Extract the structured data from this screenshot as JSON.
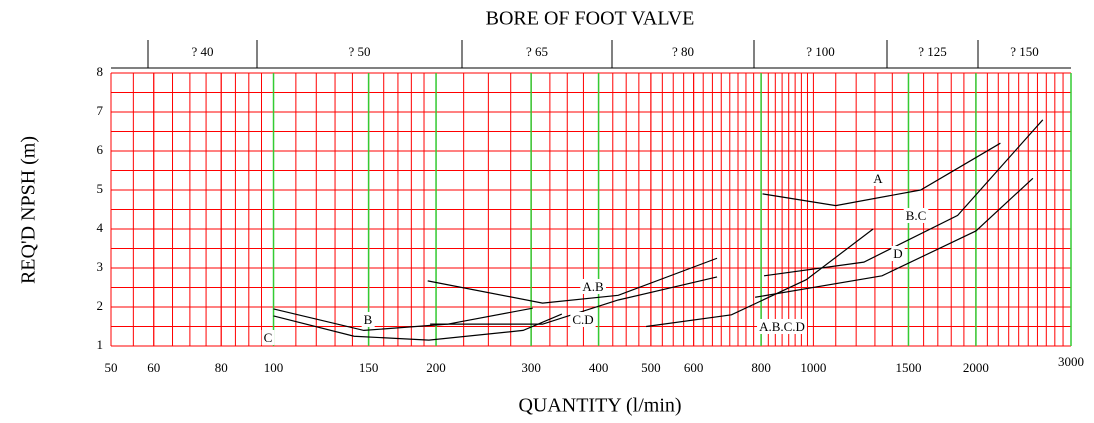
{
  "chart_data": {
    "type": "line",
    "title": "BORE OF FOOT VALVE",
    "top_labels": [
      "? 40",
      "? 50",
      "? 65",
      "? 80",
      "? 100",
      "? 125",
      "? 150"
    ],
    "xlabel": "QUANTITY (l/min)",
    "ylabel": "REQ'D NPSH (m)",
    "xscale": "log",
    "xlim": [
      50,
      3000
    ],
    "ylim": [
      1,
      8
    ],
    "xticks": [
      50,
      60,
      80,
      100,
      150,
      200,
      300,
      400,
      500,
      600,
      800,
      1000,
      1500,
      2000,
      3000
    ],
    "yticks": [
      1,
      2,
      3,
      4,
      5,
      6,
      7,
      8
    ],
    "major_grid_values": [
      100,
      150,
      200,
      300,
      400,
      800,
      1500,
      2000,
      3000
    ],
    "grid": true,
    "grid_color": "#ff0000",
    "major_grid_color": "#33cc33",
    "series": [
      {
        "name": "A",
        "color": "#000000",
        "x": [
          805,
          1100,
          1580,
          2220
        ],
        "values": [
          4.9,
          4.6,
          5.0,
          6.2
        ]
      },
      {
        "name": "B.C",
        "color": "#000000",
        "x": [
          810,
          1240,
          1850,
          2660
        ],
        "values": [
          2.8,
          3.15,
          4.35,
          6.8
        ]
      },
      {
        "name": "D",
        "color": "#000000",
        "x": [
          780,
          1340,
          2000,
          2550
        ],
        "values": [
          2.25,
          2.8,
          3.95,
          5.3
        ]
      },
      {
        "name": "A.B.C.D",
        "color": "#000000",
        "x": [
          490,
          705,
          970,
          1290
        ],
        "values": [
          1.5,
          1.8,
          2.7,
          4.0
        ]
      },
      {
        "name": "A.B",
        "color": "#000000",
        "x": [
          193,
          315,
          435,
          663
        ],
        "values": [
          2.67,
          2.1,
          2.3,
          3.25
        ]
      },
      {
        "name": "C.D",
        "color": "#000000",
        "x": [
          195,
          315,
          435,
          663
        ],
        "values": [
          1.56,
          1.56,
          2.18,
          2.77
        ]
      },
      {
        "name": "B",
        "color": "#000000",
        "x": [
          100,
          147,
          210,
          302
        ],
        "values": [
          1.95,
          1.4,
          1.56,
          1.97
        ]
      },
      {
        "name": "C",
        "color": "#000000",
        "x": [
          100,
          141,
          194,
          290,
          342
        ],
        "values": [
          1.77,
          1.25,
          1.15,
          1.4,
          1.82
        ]
      }
    ]
  }
}
